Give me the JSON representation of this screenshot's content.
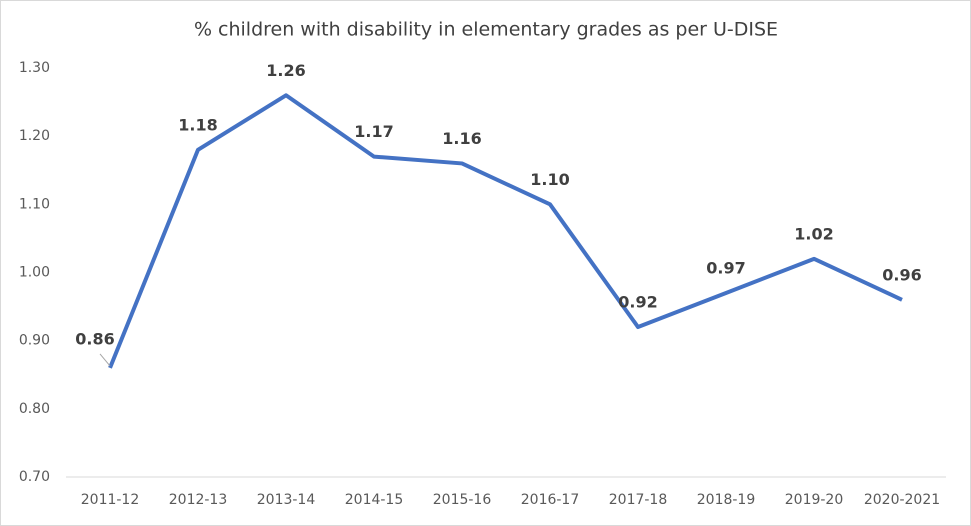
{
  "chart_data": {
    "type": "line",
    "title": "% children with disability in elementary grades as per U-DISE",
    "categories": [
      "2011-12",
      "2012-13",
      "2013-14",
      "2014-15",
      "2015-16",
      "2016-17",
      "2017-18",
      "2018-19",
      "2019-20",
      "2020-2021"
    ],
    "values": [
      0.86,
      1.18,
      1.26,
      1.17,
      1.16,
      1.1,
      0.92,
      0.97,
      1.02,
      0.96
    ],
    "value_labels": [
      "0.86",
      "1.18",
      "1.26",
      "1.17",
      "1.16",
      "1.10",
      "0.92",
      "0.97",
      "1.02",
      "0.96"
    ],
    "color": "#4472c4",
    "ylim": [
      0.7,
      1.3
    ],
    "yticks": [
      {
        "value": 0.7,
        "label": "0.70"
      },
      {
        "value": 0.8,
        "label": "0.80"
      },
      {
        "value": 0.9,
        "label": "0.90"
      },
      {
        "value": 1.0,
        "label": "1.00"
      },
      {
        "value": 1.1,
        "label": "1.10"
      },
      {
        "value": 1.2,
        "label": "1.20"
      },
      {
        "value": 1.3,
        "label": "1.30"
      }
    ],
    "grid": false
  }
}
